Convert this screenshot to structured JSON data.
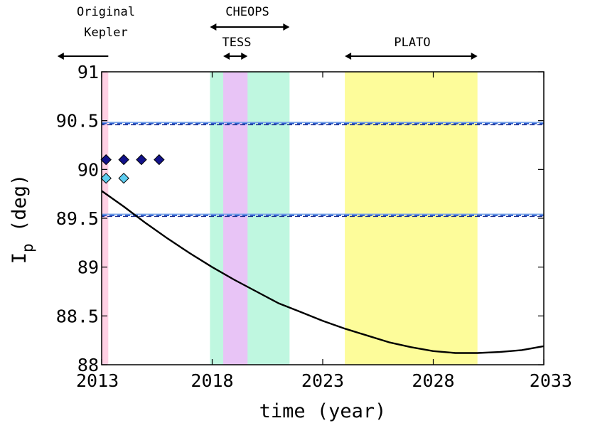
{
  "chart_data": {
    "type": "line",
    "xlabel": "time (year)",
    "ylabel_main": "I",
    "ylabel_sub": "p",
    "ylabel_unit": " (deg)",
    "xlim": [
      2013,
      2033
    ],
    "ylim": [
      88,
      91
    ],
    "xticks": [
      2013,
      2018,
      2023,
      2028,
      2033
    ],
    "xtick_labels": [
      "2013",
      "2018",
      "2023",
      "2028",
      "2033"
    ],
    "yticks": [
      88,
      88.5,
      89,
      89.5,
      90,
      90.5,
      91
    ],
    "ytick_labels": [
      "88",
      "88.5",
      "89",
      "89.5",
      "90",
      "90.5",
      "91"
    ],
    "bands": [
      {
        "name": "Original Kepler",
        "x0": 2013,
        "x1": 2013.3,
        "color": "#ffd0e4"
      },
      {
        "name": "CHEOPS",
        "x0": 2017.9,
        "x1": 2021.5,
        "color": "#bff7e0"
      },
      {
        "name": "TESS",
        "x0": 2018.5,
        "x1": 2019.6,
        "color": "#e8c4f6"
      },
      {
        "name": "PLATO",
        "x0": 2024.0,
        "x1": 2030.0,
        "color": "#fdfc9a"
      }
    ],
    "mission_labels": [
      {
        "text": "Original",
        "row": 1
      },
      {
        "text": "Kepler",
        "row": 2
      },
      {
        "text": "CHEOPS",
        "row": 1
      },
      {
        "text": "TESS",
        "row": 3
      },
      {
        "text": "PLATO",
        "row": 3
      }
    ],
    "arrows": [
      {
        "name": "kepler",
        "x0": 2013.3,
        "x1": 2011.0,
        "ends": "left"
      },
      {
        "name": "cheops",
        "x0": 2017.9,
        "x1": 2021.5,
        "ends": "both"
      },
      {
        "name": "tess",
        "x0": 2018.5,
        "x1": 2019.6,
        "ends": "both"
      },
      {
        "name": "plato",
        "x0": 2024.0,
        "x1": 2030.0,
        "ends": "both"
      }
    ],
    "hlines": [
      {
        "y": 90.47,
        "color": "#2d5fd0",
        "style": "dashed-double"
      },
      {
        "y": 89.53,
        "color": "#2d5fd0",
        "style": "dashed-double"
      }
    ],
    "series": [
      {
        "name": "model",
        "color": "#000000",
        "x": [
          2013,
          2014,
          2015,
          2016,
          2017,
          2018,
          2019,
          2020,
          2021,
          2022,
          2023,
          2024,
          2025,
          2026,
          2027,
          2028,
          2029,
          2030,
          2031,
          2032,
          2033
        ],
        "y": [
          89.78,
          89.62,
          89.45,
          89.29,
          89.14,
          89.0,
          88.87,
          88.75,
          88.63,
          88.54,
          88.45,
          88.37,
          88.3,
          88.23,
          88.18,
          88.14,
          88.12,
          88.12,
          88.13,
          88.15,
          88.19
        ]
      }
    ],
    "points": [
      {
        "name": "dark-points",
        "color": "#12128a",
        "x": [
          2013.2,
          2014.0,
          2014.8,
          2015.6
        ],
        "y": [
          90.1,
          90.1,
          90.1,
          90.1
        ]
      },
      {
        "name": "light-points",
        "color": "#5ecdf0",
        "x": [
          2013.2,
          2014.0
        ],
        "y": [
          89.91,
          89.91
        ]
      }
    ]
  }
}
